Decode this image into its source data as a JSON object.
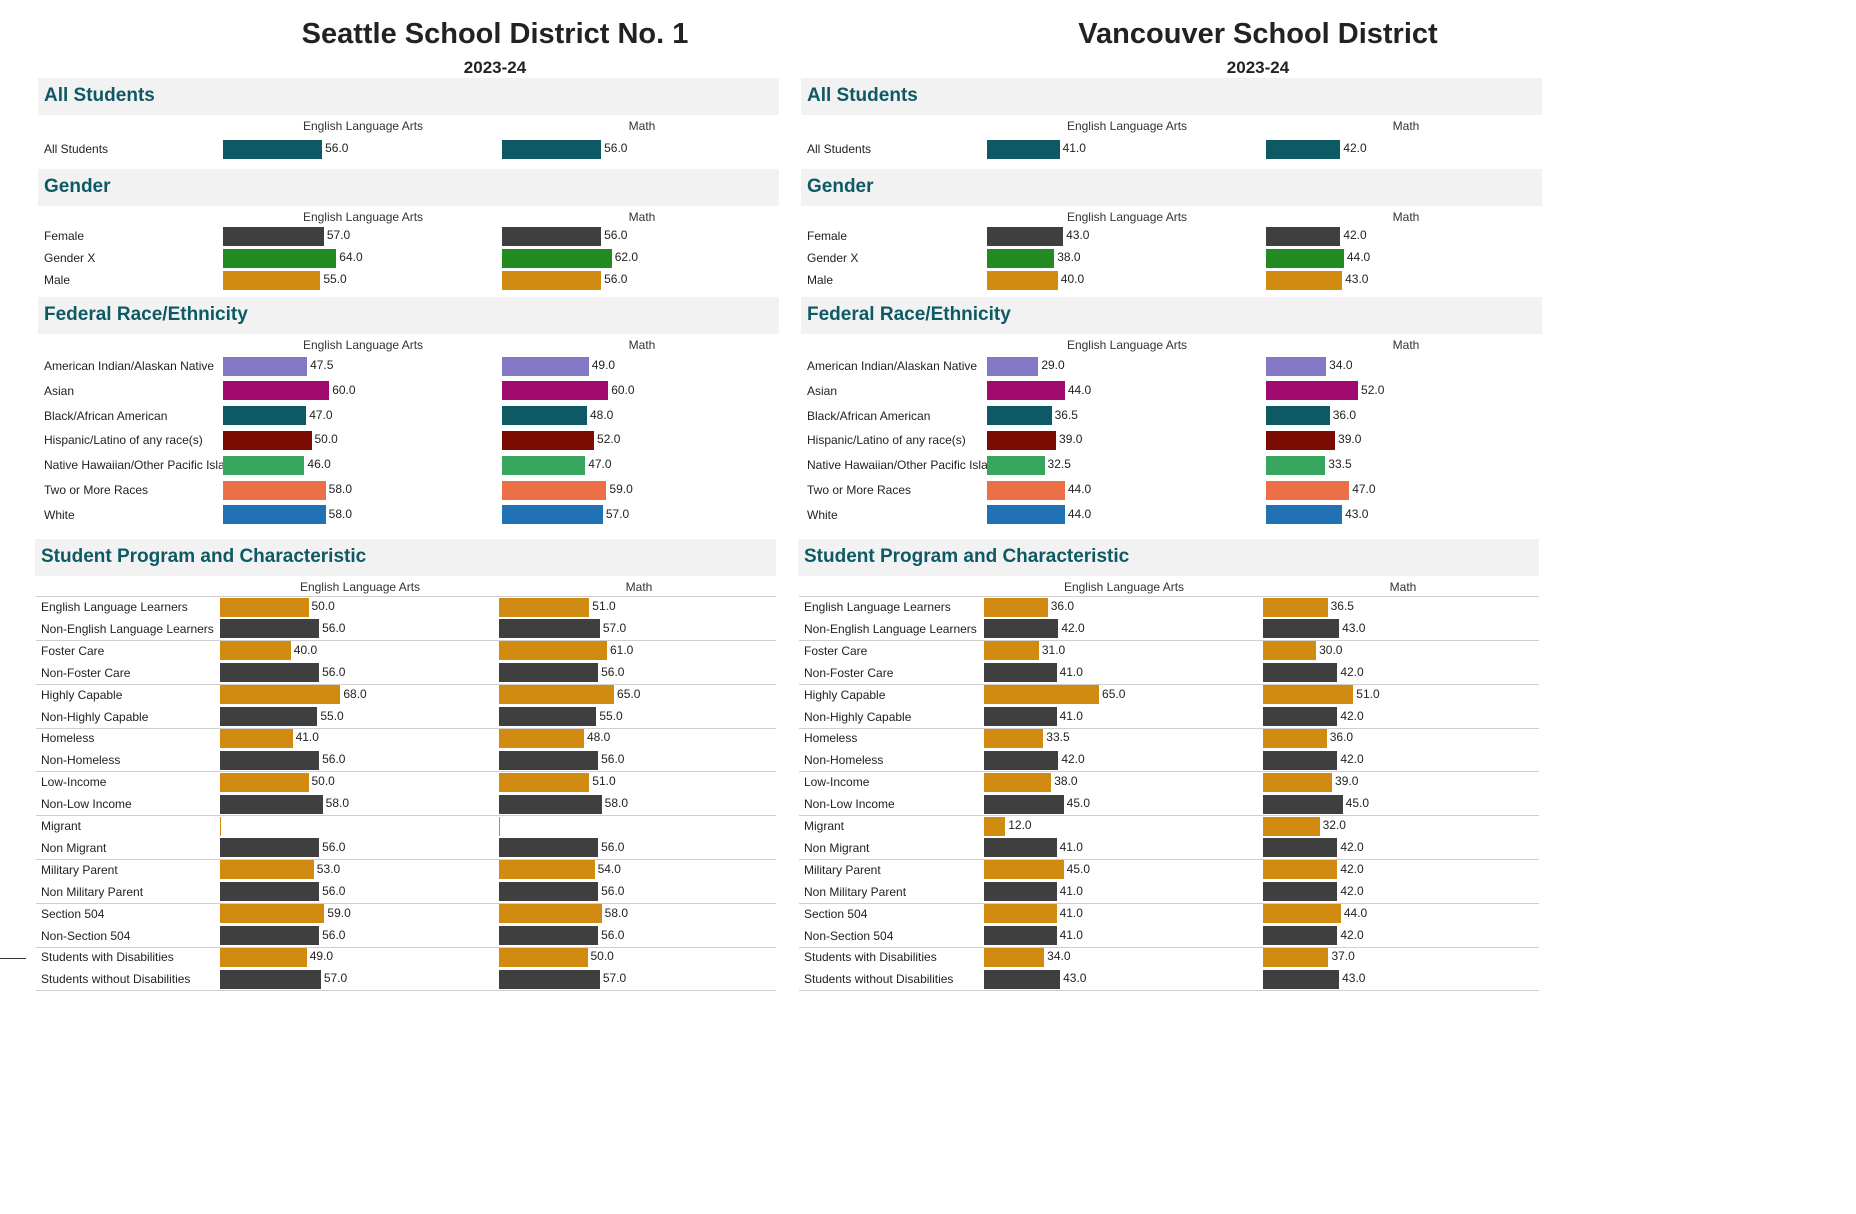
{
  "colors": {
    "all": "#0e5a64",
    "female": "#3f3f3f",
    "genderx": "#218b21",
    "male": "#d18b11",
    "aian": "#8479c4",
    "asian": "#a0096e",
    "black": "#0e5a64",
    "hispanic": "#7a0c02",
    "nhpi": "#38a65e",
    "multi": "#ec7047",
    "white": "#2171b5",
    "program": "#d18b11",
    "nonprogram": "#3f3f3f"
  },
  "headers": {
    "ela": "English Language Arts",
    "math": "Math"
  },
  "sections": {
    "all": "All Students",
    "gender": "Gender",
    "race": "Federal Race/Ethnicity",
    "program": "Student Program and Characteristic"
  },
  "chart_data": [
    {
      "type": "bar",
      "district": "Seattle School District No. 1",
      "year": "2023-24",
      "orientation": "horizontal",
      "xlim": [
        0,
        100
      ],
      "all_students": [
        {
          "label": "All Students",
          "ela": 56.0,
          "math": 56.0,
          "color": "all"
        }
      ],
      "gender": [
        {
          "label": "Female",
          "ela": 57.0,
          "math": 56.0,
          "color": "female"
        },
        {
          "label": "Gender X",
          "ela": 64.0,
          "math": 62.0,
          "color": "genderx"
        },
        {
          "label": "Male",
          "ela": 55.0,
          "math": 56.0,
          "color": "male"
        }
      ],
      "race": [
        {
          "label": "American Indian/Alaskan Native",
          "ela": 47.5,
          "math": 49.0,
          "color": "aian"
        },
        {
          "label": "Asian",
          "ela": 60.0,
          "math": 60.0,
          "color": "asian"
        },
        {
          "label": "Black/African American",
          "ela": 47.0,
          "math": 48.0,
          "color": "black"
        },
        {
          "label": "Hispanic/Latino of any race(s)",
          "ela": 50.0,
          "math": 52.0,
          "color": "hispanic"
        },
        {
          "label": "Native Hawaiian/Other Pacific Islander",
          "ela": 46.0,
          "math": 47.0,
          "color": "nhpi"
        },
        {
          "label": "Two or More Races",
          "ela": 58.0,
          "math": 59.0,
          "color": "multi"
        },
        {
          "label": "White",
          "ela": 58.0,
          "math": 57.0,
          "color": "white"
        }
      ],
      "program": [
        {
          "label": "English Language Learners",
          "ela": 50.0,
          "math": 51.0,
          "color": "program"
        },
        {
          "label": "Non-English Language Learners",
          "ela": 56.0,
          "math": 57.0,
          "color": "nonprogram"
        },
        {
          "label": "Foster Care",
          "ela": 40.0,
          "math": 61.0,
          "color": "program"
        },
        {
          "label": "Non-Foster Care",
          "ela": 56.0,
          "math": 56.0,
          "color": "nonprogram"
        },
        {
          "label": "Highly Capable",
          "ela": 68.0,
          "math": 65.0,
          "color": "program"
        },
        {
          "label": "Non-Highly Capable",
          "ela": 55.0,
          "math": 55.0,
          "color": "nonprogram"
        },
        {
          "label": "Homeless",
          "ela": 41.0,
          "math": 48.0,
          "color": "program"
        },
        {
          "label": "Non-Homeless",
          "ela": 56.0,
          "math": 56.0,
          "color": "nonprogram"
        },
        {
          "label": "Low-Income",
          "ela": 50.0,
          "math": 51.0,
          "color": "program"
        },
        {
          "label": "Non-Low Income",
          "ela": 58.0,
          "math": 58.0,
          "color": "nonprogram"
        },
        {
          "label": "Migrant",
          "ela": null,
          "math": null,
          "color": "program"
        },
        {
          "label": "Non Migrant",
          "ela": 56.0,
          "math": 56.0,
          "color": "nonprogram"
        },
        {
          "label": "Military Parent",
          "ela": 53.0,
          "math": 54.0,
          "color": "program"
        },
        {
          "label": "Non Military Parent",
          "ela": 56.0,
          "math": 56.0,
          "color": "nonprogram"
        },
        {
          "label": "Section 504",
          "ela": 59.0,
          "math": 58.0,
          "color": "program"
        },
        {
          "label": "Non-Section 504",
          "ela": 56.0,
          "math": 56.0,
          "color": "nonprogram"
        },
        {
          "label": "Students with Disabilities",
          "ela": 49.0,
          "math": 50.0,
          "color": "program"
        },
        {
          "label": "Students without Disabilities",
          "ela": 57.0,
          "math": 57.0,
          "color": "nonprogram"
        }
      ]
    },
    {
      "type": "bar",
      "district": "Vancouver School District",
      "year": "2023-24",
      "orientation": "horizontal",
      "xlim": [
        0,
        100
      ],
      "all_students": [
        {
          "label": "All Students",
          "ela": 41.0,
          "math": 42.0,
          "color": "all"
        }
      ],
      "gender": [
        {
          "label": "Female",
          "ela": 43.0,
          "math": 42.0,
          "color": "female"
        },
        {
          "label": "Gender X",
          "ela": 38.0,
          "math": 44.0,
          "color": "genderx"
        },
        {
          "label": "Male",
          "ela": 40.0,
          "math": 43.0,
          "color": "male"
        }
      ],
      "race": [
        {
          "label": "American Indian/Alaskan Native",
          "ela": 29.0,
          "math": 34.0,
          "color": "aian"
        },
        {
          "label": "Asian",
          "ela": 44.0,
          "math": 52.0,
          "color": "asian"
        },
        {
          "label": "Black/African American",
          "ela": 36.5,
          "math": 36.0,
          "color": "black"
        },
        {
          "label": "Hispanic/Latino of any race(s)",
          "ela": 39.0,
          "math": 39.0,
          "color": "hispanic"
        },
        {
          "label": "Native Hawaiian/Other Pacific Islander",
          "ela": 32.5,
          "math": 33.5,
          "color": "nhpi"
        },
        {
          "label": "Two or More Races",
          "ela": 44.0,
          "math": 47.0,
          "color": "multi"
        },
        {
          "label": "White",
          "ela": 44.0,
          "math": 43.0,
          "color": "white"
        }
      ],
      "program": [
        {
          "label": "English Language Learners",
          "ela": 36.0,
          "math": 36.5,
          "color": "program"
        },
        {
          "label": "Non-English Language Learners",
          "ela": 42.0,
          "math": 43.0,
          "color": "nonprogram"
        },
        {
          "label": "Foster Care",
          "ela": 31.0,
          "math": 30.0,
          "color": "program"
        },
        {
          "label": "Non-Foster Care",
          "ela": 41.0,
          "math": 42.0,
          "color": "nonprogram"
        },
        {
          "label": "Highly Capable",
          "ela": 65.0,
          "math": 51.0,
          "color": "program"
        },
        {
          "label": "Non-Highly Capable",
          "ela": 41.0,
          "math": 42.0,
          "color": "nonprogram"
        },
        {
          "label": "Homeless",
          "ela": 33.5,
          "math": 36.0,
          "color": "program"
        },
        {
          "label": "Non-Homeless",
          "ela": 42.0,
          "math": 42.0,
          "color": "nonprogram"
        },
        {
          "label": "Low-Income",
          "ela": 38.0,
          "math": 39.0,
          "color": "program"
        },
        {
          "label": "Non-Low Income",
          "ela": 45.0,
          "math": 45.0,
          "color": "nonprogram"
        },
        {
          "label": "Migrant",
          "ela": 12.0,
          "math": 32.0,
          "color": "program"
        },
        {
          "label": "Non Migrant",
          "ela": 41.0,
          "math": 42.0,
          "color": "nonprogram"
        },
        {
          "label": "Military Parent",
          "ela": 45.0,
          "math": 42.0,
          "color": "program"
        },
        {
          "label": "Non Military Parent",
          "ela": 41.0,
          "math": 42.0,
          "color": "nonprogram"
        },
        {
          "label": "Section 504",
          "ela": 41.0,
          "math": 44.0,
          "color": "program"
        },
        {
          "label": "Non-Section 504",
          "ela": 41.0,
          "math": 42.0,
          "color": "nonprogram"
        },
        {
          "label": "Students with Disabilities",
          "ela": 34.0,
          "math": 37.0,
          "color": "program"
        },
        {
          "label": "Students without Disabilities",
          "ela": 43.0,
          "math": 43.0,
          "color": "nonprogram"
        }
      ]
    }
  ]
}
